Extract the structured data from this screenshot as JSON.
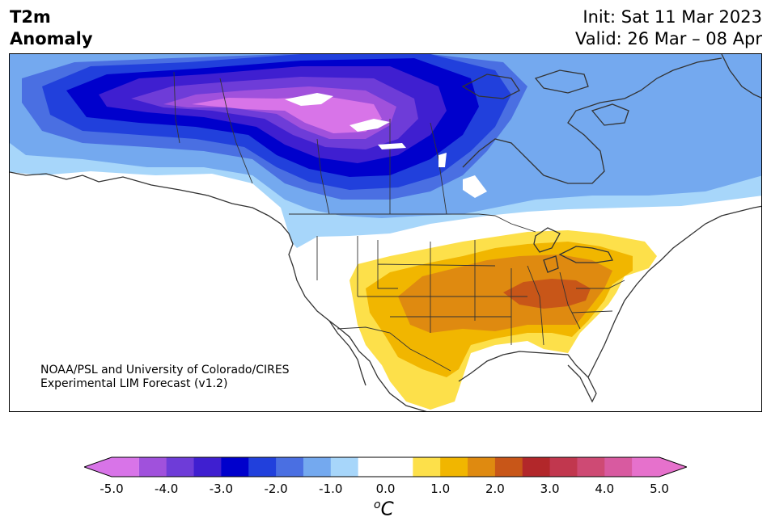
{
  "header": {
    "title_line1": "T2m",
    "title_line2": "Anomaly",
    "init_label": "Init: Sat 11 Mar 2023",
    "valid_label": "Valid: 26 Mar – 08 Apr"
  },
  "credit": {
    "line1": "NOAA/PSL and University of Colorado/CIRES",
    "line2": "Experimental LIM Forecast (v1.2)"
  },
  "colorbar": {
    "tick_labels": [
      "-5.0",
      "-4.0",
      "-3.0",
      "-2.0",
      "-1.0",
      "0.0",
      "1.0",
      "2.0",
      "3.0",
      "4.0",
      "5.0"
    ],
    "unit_base": "C",
    "unit_superscript": "o",
    "colors": [
      "#d874e8",
      "#a051dc",
      "#6e3cd8",
      "#3f1fd0",
      "#0000cc",
      "#2140dc",
      "#4a6fe2",
      "#74a9ef",
      "#a7d6fa",
      "#ffffff",
      "#ffffff",
      "#fde04a",
      "#f1b600",
      "#df8a10",
      "#c85618",
      "#b2272a",
      "#c1374e",
      "#ce4a74",
      "#d85aa0",
      "#e671cc"
    ]
  },
  "map": {
    "region": "North America",
    "coastline_color": "#333333",
    "border_color": "#333333"
  }
}
